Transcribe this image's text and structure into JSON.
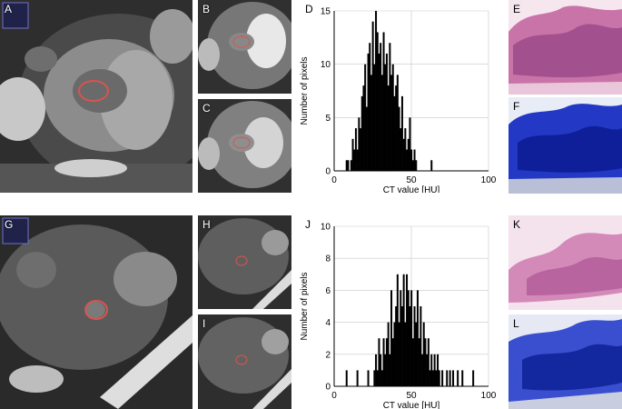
{
  "panels": {
    "A": "A",
    "B": "B",
    "C": "C",
    "D": "D",
    "E": "E",
    "F": "F",
    "G": "G",
    "H": "H",
    "I": "I",
    "J": "J",
    "K": "K",
    "L": "L"
  },
  "colors": {
    "bar": "#000000",
    "roi": "#d9534f",
    "he_stain": "#d77fb3",
    "mt_stain": "#1a2fbf"
  },
  "chart_data": [
    {
      "type": "bar",
      "panel": "D",
      "title": "",
      "xlabel": "CT value [HU]",
      "ylabel": "Number of pixels",
      "xlim": [
        0,
        100
      ],
      "ylim": [
        0,
        15
      ],
      "xticks": [
        0,
        50,
        100
      ],
      "yticks": [
        0,
        5,
        10,
        15
      ],
      "grid": true,
      "x": [
        8,
        9,
        10,
        11,
        12,
        13,
        14,
        15,
        16,
        17,
        18,
        19,
        20,
        21,
        22,
        23,
        24,
        25,
        26,
        27,
        28,
        29,
        30,
        31,
        32,
        33,
        34,
        35,
        36,
        37,
        38,
        39,
        40,
        41,
        42,
        43,
        44,
        45,
        46,
        47,
        48,
        49,
        50,
        51,
        52,
        53,
        54,
        55,
        56,
        57,
        58,
        59,
        60,
        61,
        62,
        63,
        64,
        65,
        66,
        67,
        68
      ],
      "values": [
        1,
        1,
        0,
        1,
        3,
        2,
        4,
        2,
        5,
        4,
        7,
        8,
        10,
        6,
        11,
        12,
        9,
        14,
        10,
        15,
        13,
        11,
        12,
        9,
        13,
        10,
        11,
        8,
        12,
        9,
        10,
        7,
        8,
        9,
        6,
        4,
        7,
        3,
        4,
        2,
        3,
        5,
        2,
        1,
        2,
        1,
        0,
        0,
        0,
        0,
        0,
        0,
        0,
        0,
        0,
        1,
        0,
        0,
        0,
        0,
        0
      ]
    },
    {
      "type": "bar",
      "panel": "J",
      "title": "",
      "xlabel": "CT value [HU]",
      "ylabel": "Number of pixels",
      "xlim": [
        0,
        100
      ],
      "ylim": [
        0,
        10
      ],
      "xticks": [
        0,
        50,
        100
      ],
      "yticks": [
        0,
        2,
        4,
        6,
        8,
        10
      ],
      "grid": true,
      "x": [
        8,
        15,
        22,
        24,
        26,
        27,
        28,
        29,
        30,
        31,
        32,
        33,
        34,
        35,
        36,
        37,
        38,
        39,
        40,
        41,
        42,
        43,
        44,
        45,
        46,
        47,
        48,
        49,
        50,
        51,
        52,
        53,
        54,
        55,
        56,
        57,
        58,
        59,
        60,
        61,
        62,
        63,
        64,
        65,
        66,
        67,
        68,
        70,
        73,
        75,
        77,
        80,
        83,
        90
      ],
      "values": [
        1,
        1,
        1,
        0,
        1,
        2,
        1,
        3,
        2,
        1,
        3,
        2,
        3,
        4,
        2,
        6,
        3,
        4,
        5,
        7,
        4,
        6,
        5,
        7,
        4,
        7,
        6,
        5,
        6,
        3,
        5,
        4,
        6,
        3,
        5,
        2,
        4,
        3,
        2,
        3,
        1,
        2,
        1,
        2,
        1,
        2,
        1,
        1,
        1,
        1,
        1,
        1,
        1,
        1
      ]
    }
  ]
}
